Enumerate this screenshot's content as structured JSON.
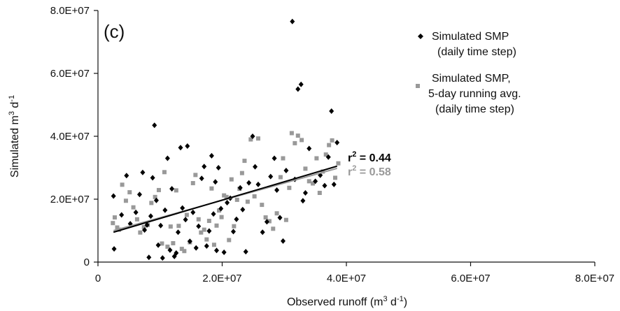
{
  "chart_data": {
    "type": "scatter",
    "panel_label": "(c)",
    "xlabel": {
      "pre": "Observed runoff (m",
      "sup1": "3",
      "mid": " d",
      "sup2": "-1",
      "post": ")"
    },
    "ylabel": {
      "pre": "Simulated m",
      "sup1": "3",
      "mid": " d",
      "sup2": "-1"
    },
    "xlim": [
      0,
      80000000
    ],
    "ylim": [
      0,
      80000000
    ],
    "x_ticks": [
      0,
      20000000,
      40000000,
      60000000,
      80000000
    ],
    "x_tick_labels": [
      "0",
      "2.0E+07",
      "4.0E+07",
      "6.0E+07",
      "8.0E+07"
    ],
    "y_ticks": [
      0,
      20000000,
      40000000,
      60000000,
      80000000
    ],
    "y_tick_labels": [
      "0",
      "2.0E+07",
      "4.0E+07",
      "6.0E+07",
      "8.0E+07"
    ],
    "grid": false,
    "legend_position": "top-right",
    "colors": {
      "daily": "#000000",
      "avg": "#999999",
      "axis": "#111111"
    },
    "series": [
      {
        "legend": [
          "Simulated SMP",
          "(daily time step)"
        ],
        "marker": "diamond",
        "r2_label": "r",
        "r2_sup": "2",
        "r2_value": " = 0.44",
        "trend": {
          "x": [
            2500000,
            38500000
          ],
          "y": [
            9500000,
            30500000
          ]
        },
        "points": [
          [
            2500000,
            21000000
          ],
          [
            2600000,
            4200000
          ],
          [
            3800000,
            15000000
          ],
          [
            4600000,
            27500000
          ],
          [
            5200000,
            12200000
          ],
          [
            6100000,
            15800000
          ],
          [
            6700000,
            21500000
          ],
          [
            7200000,
            28500000
          ],
          [
            7500000,
            10200000
          ],
          [
            7900000,
            11800000
          ],
          [
            8200000,
            1500000
          ],
          [
            8500000,
            14600000
          ],
          [
            8800000,
            26800000
          ],
          [
            9100000,
            43500000
          ],
          [
            9400000,
            19600000
          ],
          [
            9700000,
            5400000
          ],
          [
            10100000,
            11600000
          ],
          [
            10400000,
            1300000
          ],
          [
            10800000,
            16500000
          ],
          [
            11200000,
            33000000
          ],
          [
            11600000,
            3800000
          ],
          [
            11900000,
            23300000
          ],
          [
            12300000,
            1800000
          ],
          [
            12600000,
            2900000
          ],
          [
            12900000,
            9500000
          ],
          [
            13300000,
            36400000
          ],
          [
            13600000,
            17200000
          ],
          [
            14100000,
            13500000
          ],
          [
            14400000,
            36900000
          ],
          [
            14800000,
            6600000
          ],
          [
            15300000,
            15800000
          ],
          [
            15800000,
            4500000
          ],
          [
            16200000,
            11400000
          ],
          [
            16700000,
            26600000
          ],
          [
            17100000,
            30400000
          ],
          [
            17500000,
            5100000
          ],
          [
            17900000,
            9900000
          ],
          [
            18300000,
            33800000
          ],
          [
            18600000,
            15300000
          ],
          [
            18900000,
            25500000
          ],
          [
            19100000,
            3700000
          ],
          [
            19400000,
            30000000
          ],
          [
            19800000,
            17000000
          ],
          [
            20300000,
            3100000
          ],
          [
            20800000,
            18900000
          ],
          [
            21300000,
            20300000
          ],
          [
            21800000,
            9700000
          ],
          [
            22300000,
            13600000
          ],
          [
            22900000,
            23600000
          ],
          [
            23300000,
            16700000
          ],
          [
            23800000,
            3300000
          ],
          [
            24300000,
            25200000
          ],
          [
            24900000,
            40000000
          ],
          [
            25300000,
            30300000
          ],
          [
            25800000,
            24700000
          ],
          [
            26500000,
            9500000
          ],
          [
            27200000,
            12800000
          ],
          [
            27800000,
            27200000
          ],
          [
            28400000,
            33000000
          ],
          [
            28800000,
            22900000
          ],
          [
            29300000,
            14100000
          ],
          [
            29800000,
            6700000
          ],
          [
            30300000,
            29100000
          ],
          [
            31300000,
            76500000
          ],
          [
            31700000,
            26300000
          ],
          [
            32200000,
            55000000
          ],
          [
            32700000,
            56500000
          ],
          [
            33000000,
            19500000
          ],
          [
            33400000,
            22000000
          ],
          [
            34000000,
            36100000
          ],
          [
            35000000,
            25700000
          ],
          [
            35800000,
            27600000
          ],
          [
            36500000,
            24300000
          ],
          [
            37100000,
            33400000
          ],
          [
            37600000,
            48000000
          ],
          [
            38000000,
            24700000
          ],
          [
            38500000,
            38000000
          ]
        ]
      },
      {
        "legend": [
          "Simulated SMP,",
          "5-day running avg.",
          "(daily time step)"
        ],
        "marker": "square",
        "r2_label": "r",
        "r2_sup": "2",
        "r2_value": " = 0.58",
        "trend": {
          "x": [
            2500000,
            38500000
          ],
          "y": [
            10000000,
            29800000
          ]
        },
        "points": [
          [
            2400000,
            12400000
          ],
          [
            2700000,
            14200000
          ],
          [
            3100000,
            11000000
          ],
          [
            3400000,
            10300000
          ],
          [
            3900000,
            24600000
          ],
          [
            4500000,
            19500000
          ],
          [
            5100000,
            22200000
          ],
          [
            5700000,
            17400000
          ],
          [
            6300000,
            13600000
          ],
          [
            6800000,
            9400000
          ],
          [
            7400000,
            11100000
          ],
          [
            8000000,
            11800000
          ],
          [
            8600000,
            18800000
          ],
          [
            9200000,
            20700000
          ],
          [
            9800000,
            22900000
          ],
          [
            10300000,
            5900000
          ],
          [
            10700000,
            28600000
          ],
          [
            11200000,
            4900000
          ],
          [
            11700000,
            11300000
          ],
          [
            12100000,
            6000000
          ],
          [
            12600000,
            22800000
          ],
          [
            13000000,
            11500000
          ],
          [
            13500000,
            4200000
          ],
          [
            13900000,
            3500000
          ],
          [
            14300000,
            15000000
          ],
          [
            14800000,
            6300000
          ],
          [
            15300000,
            25100000
          ],
          [
            15700000,
            27700000
          ],
          [
            16200000,
            13600000
          ],
          [
            16600000,
            9400000
          ],
          [
            17100000,
            10300000
          ],
          [
            17500000,
            7200000
          ],
          [
            17900000,
            13100000
          ],
          [
            18300000,
            23400000
          ],
          [
            18700000,
            5500000
          ],
          [
            19100000,
            11600000
          ],
          [
            19500000,
            16400000
          ],
          [
            19900000,
            14300000
          ],
          [
            20300000,
            21200000
          ],
          [
            20700000,
            20700000
          ],
          [
            21100000,
            7000000
          ],
          [
            21500000,
            26300000
          ],
          [
            21900000,
            11400000
          ],
          [
            22400000,
            19800000
          ],
          [
            22800000,
            23300000
          ],
          [
            23200000,
            28300000
          ],
          [
            23600000,
            32200000
          ],
          [
            24100000,
            19200000
          ],
          [
            24600000,
            39000000
          ],
          [
            25200000,
            20900000
          ],
          [
            25800000,
            39300000
          ],
          [
            26400000,
            18200000
          ],
          [
            27000000,
            14200000
          ],
          [
            27600000,
            13000000
          ],
          [
            28200000,
            10600000
          ],
          [
            28800000,
            15500000
          ],
          [
            29400000,
            27000000
          ],
          [
            29800000,
            33000000
          ],
          [
            30300000,
            13400000
          ],
          [
            30800000,
            23600000
          ],
          [
            31200000,
            41000000
          ],
          [
            31700000,
            37800000
          ],
          [
            32200000,
            40200000
          ],
          [
            32800000,
            38800000
          ],
          [
            33400000,
            29700000
          ],
          [
            34000000,
            25700000
          ],
          [
            34600000,
            25000000
          ],
          [
            35200000,
            33000000
          ],
          [
            35700000,
            22000000
          ],
          [
            36200000,
            28800000
          ],
          [
            36700000,
            34200000
          ],
          [
            37200000,
            37200000
          ],
          [
            37700000,
            38700000
          ],
          [
            38200000,
            26800000
          ],
          [
            38700000,
            31400000
          ]
        ]
      }
    ]
  }
}
